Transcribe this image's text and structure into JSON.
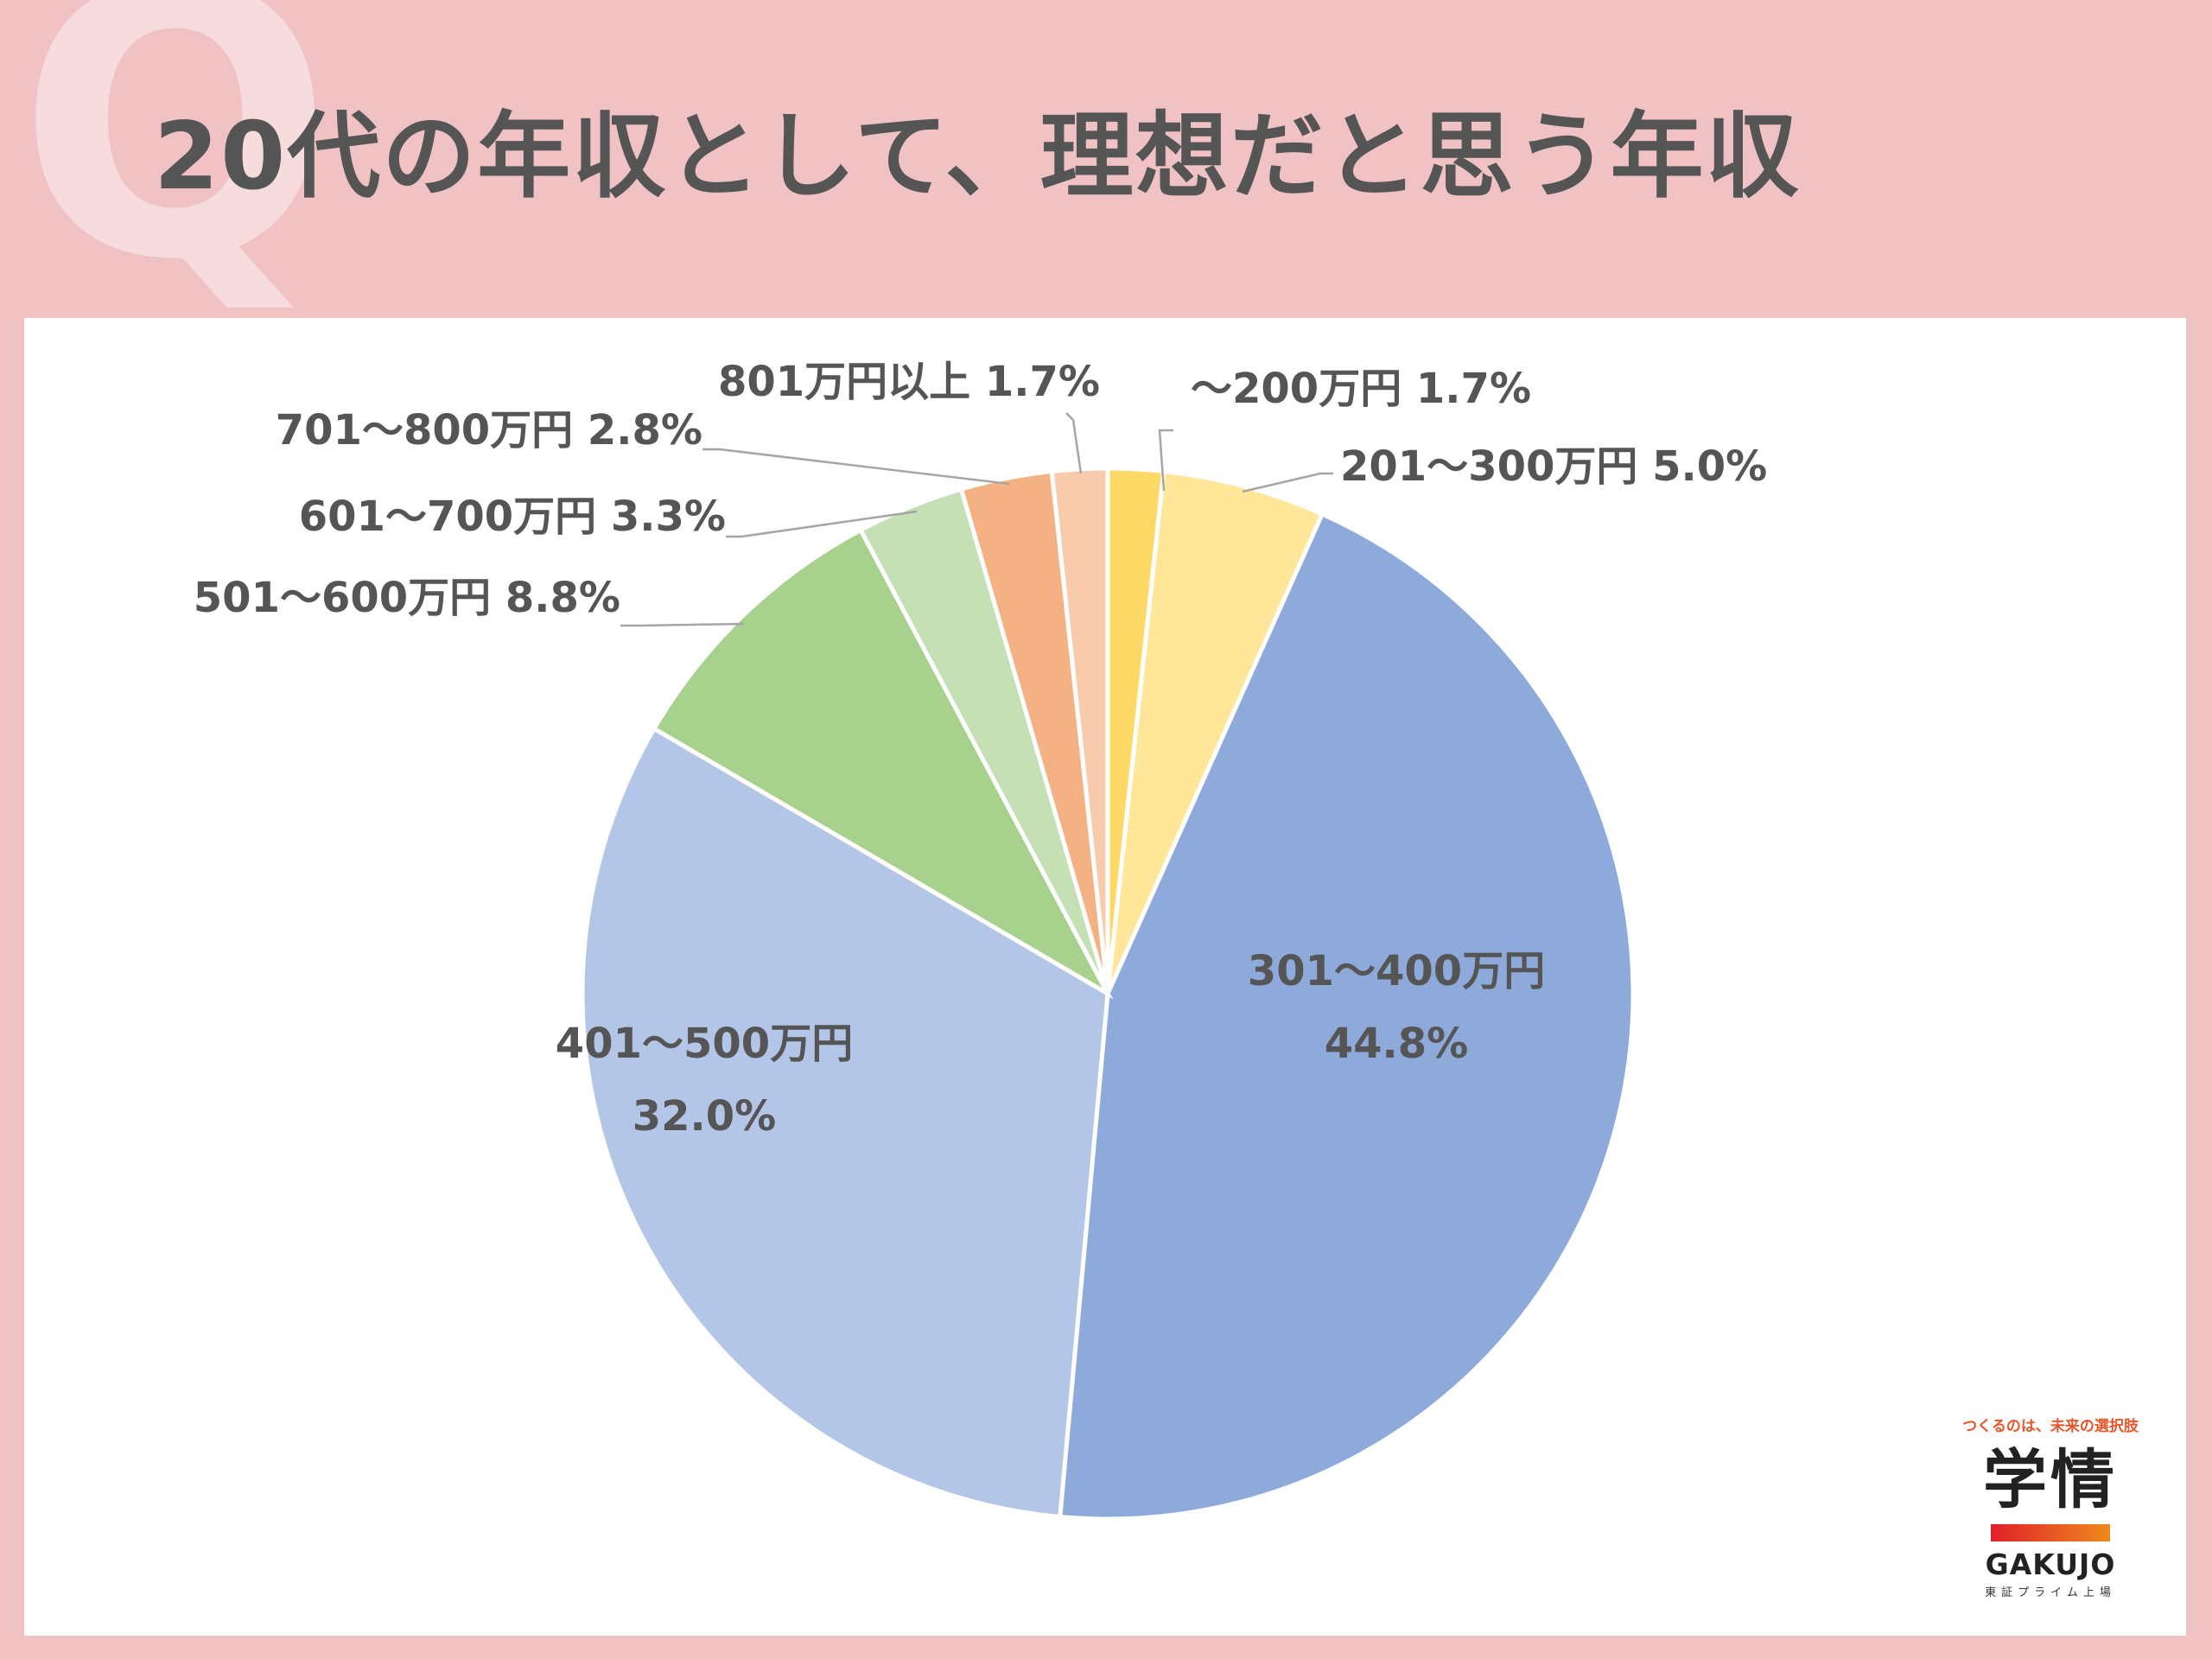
{
  "header": {
    "q_letter": "Q",
    "title": "20代の年収として、理想だと思う年収"
  },
  "chart_data": {
    "type": "pie",
    "title": "20代の年収として、理想だと思う年収",
    "categories": [
      "～200万円",
      "201～300万円",
      "301～400万円",
      "401～500万円",
      "501～600万円",
      "601～700万円",
      "701～800万円",
      "801万円以上"
    ],
    "values": [
      1.7,
      5.0,
      44.8,
      32.0,
      8.8,
      3.3,
      2.8,
      1.7
    ],
    "unit": "%",
    "colors": [
      "#ffd966",
      "#ffe699",
      "#8eaadb",
      "#b4c6e7",
      "#a9d18e",
      "#c5e0b4",
      "#f4b183",
      "#f8cbad"
    ],
    "labels": [
      {
        "name": "～200万円",
        "value": "1.7%"
      },
      {
        "name": "201～300万円",
        "value": "5.0%"
      },
      {
        "name": "301～400万円",
        "value": "44.8%"
      },
      {
        "name": "401～500万円",
        "value": "32.0%"
      },
      {
        "name": "501～600万円",
        "value": "8.8%"
      },
      {
        "name": "601～700万円",
        "value": "3.3%"
      },
      {
        "name": "701～800万円",
        "value": "2.8%"
      },
      {
        "name": "801万円以上",
        "value": "1.7%"
      }
    ]
  },
  "logo": {
    "tagline": "つくるのは、未来の選択肢",
    "kanji": "学情",
    "english": "GAKUJO",
    "sub": "東証プライム上場"
  }
}
